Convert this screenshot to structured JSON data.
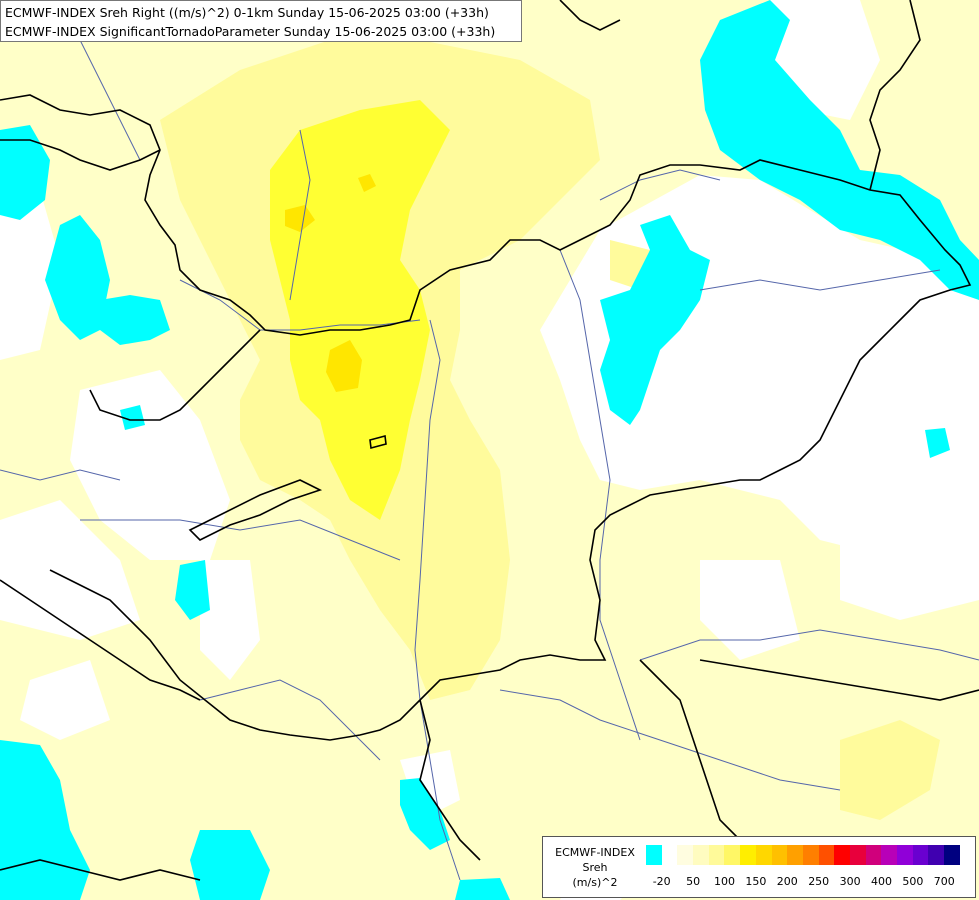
{
  "title": {
    "line1": "ECMWF-INDEX Sreh Right ((m/s)^2) 0-1km Sunday 15-06-2025 03:00 (+33h)",
    "line2": "ECMWF-INDEX SignificantTornadoParameter Sunday 15-06-2025 03:00 (+33h)"
  },
  "legend": {
    "model": "ECMWF-INDEX",
    "variable": "Sreh",
    "unit": "(m/s)^2",
    "colors": [
      "#00ffff",
      "#ffffff",
      "#fffde0",
      "#fffcc0",
      "#fffa9a",
      "#fff766",
      "#ffee00",
      "#ffd700",
      "#ffc000",
      "#ffa000",
      "#ff7f00",
      "#ff5000",
      "#ff0000",
      "#e8003c",
      "#d0007c",
      "#b800b8",
      "#9000d8",
      "#6a00d0",
      "#4000b0",
      "#000080"
    ],
    "tick_labels": [
      "-20",
      "50",
      "100",
      "150",
      "200",
      "250",
      "300",
      "400",
      "500",
      "700"
    ]
  },
  "colors": {
    "cyan": "#00ffff",
    "pale_yellow": "#ffffc0",
    "light_yellow": "#fffa99",
    "yellow": "#ffff33",
    "deep_yellow": "#ffe600",
    "border_line": "#000000",
    "river_line": "#5566aa"
  }
}
